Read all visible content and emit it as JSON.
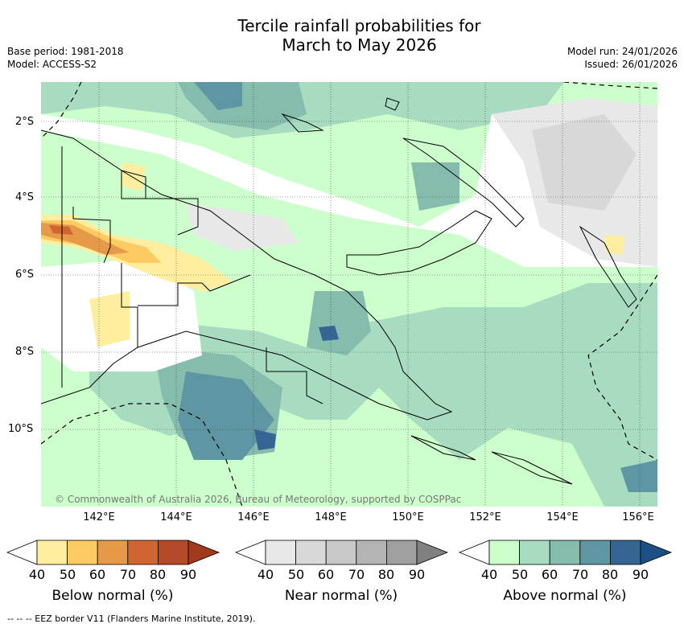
{
  "title_line1": "Tercile rainfall probabilities for",
  "title_line2": "March to May 2026",
  "base_period": "Base period: 1981-2018",
  "model": "Model: ACCESS-S2",
  "model_run": "Model run: 24/01/2026",
  "issued": "Issued: 26/01/2026",
  "lat_labels": [
    "2°S",
    "4°S",
    "6°S",
    "8°S",
    "10°S"
  ],
  "lon_labels": [
    "142°E",
    "144°E",
    "146°E",
    "148°E",
    "150°E",
    "152°E",
    "154°E",
    "156°E"
  ],
  "credit": "© Commonwealth of Australia 2026, Bureau of Meteorology, supported by COSPPac",
  "colorbars": [
    {
      "label": "Below normal (%)",
      "ticks": [
        "40",
        "50",
        "60",
        "70",
        "80",
        "90"
      ],
      "colors": [
        "#ffffff",
        "#ffeea0",
        "#fdcb62",
        "#e59949",
        "#d06532",
        "#b44a27",
        "#a03a1c"
      ]
    },
    {
      "label": "Near normal (%)",
      "ticks": [
        "40",
        "50",
        "60",
        "70",
        "80",
        "90"
      ],
      "colors": [
        "#ffffff",
        "#e8e8e8",
        "#d8d8d8",
        "#c8c8c8",
        "#b4b4b4",
        "#a0a0a0",
        "#808080"
      ]
    },
    {
      "label": "Above normal (%)",
      "ticks": [
        "40",
        "50",
        "60",
        "70",
        "80",
        "90"
      ],
      "colors": [
        "#ffffff",
        "#ccffcc",
        "#a8dcc0",
        "#86bcae",
        "#5e97a3",
        "#356693",
        "#1c4f85"
      ]
    }
  ],
  "footer": "--  --  -- EEZ border V11 (Flanders Marine Institute, 2019)."
}
